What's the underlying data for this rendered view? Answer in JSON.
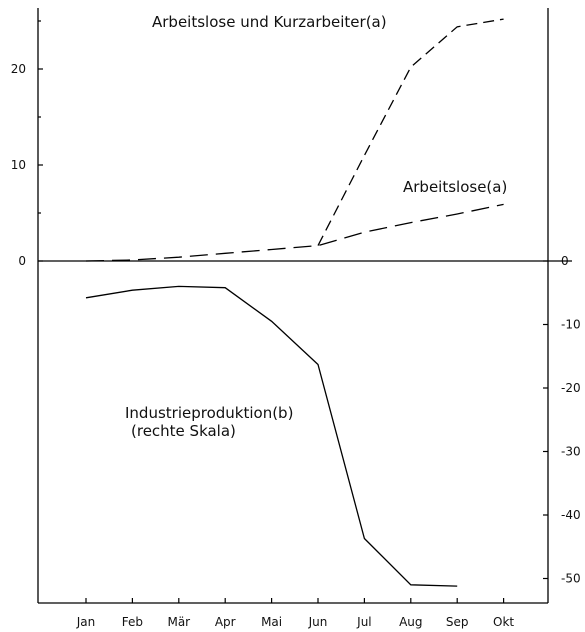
{
  "chart_data": {
    "type": "line",
    "title": "",
    "xlabel": "",
    "ylabel": "",
    "categories": [
      "Jan",
      "Feb",
      "Mär",
      "Apr",
      "Mai",
      "Jun",
      "Jul",
      "Aug",
      "Sep",
      "Okt"
    ],
    "left_axis": {
      "ylim": [
        0,
        25
      ],
      "ticks": [
        "0",
        "10",
        "20"
      ]
    },
    "right_axis": {
      "ylim": [
        -55,
        0
      ],
      "ticks": [
        "0",
        "-10",
        "-20",
        "-30",
        "-40",
        "-50"
      ]
    },
    "grid": false,
    "series": [
      {
        "name": "Arbeitslose und Kurzarbeiter(a)",
        "axis": "left",
        "style": "dashed",
        "x": [
          "Jun",
          "Jul",
          "Aug",
          "Sep",
          "Okt"
        ],
        "values": [
          1.6,
          11,
          20.2,
          24.4,
          25.2
        ]
      },
      {
        "name": "Arbeitslose(a)",
        "axis": "left",
        "style": "long-dashed",
        "x": [
          "Jan",
          "Feb",
          "Mär",
          "Apr",
          "Mai",
          "Jun",
          "Jul",
          "Aug",
          "Sep",
          "Okt"
        ],
        "values": [
          0,
          0.1,
          0.4,
          0.8,
          1.2,
          1.6,
          3.0,
          4.0,
          4.9,
          5.9
        ]
      },
      {
        "name": "Industrieproduktion(b)",
        "name_line2": "(rechte Skala)",
        "axis": "right",
        "style": "solid",
        "x": [
          "Jan",
          "Feb",
          "Mär",
          "Apr",
          "Mai",
          "Jun",
          "Jul",
          "Aug",
          "Sep"
        ],
        "values": [
          -5.8,
          -4.6,
          -4.0,
          -4.2,
          -9.5,
          -16.3,
          -43.7,
          -51.0,
          -51.2
        ]
      }
    ]
  }
}
